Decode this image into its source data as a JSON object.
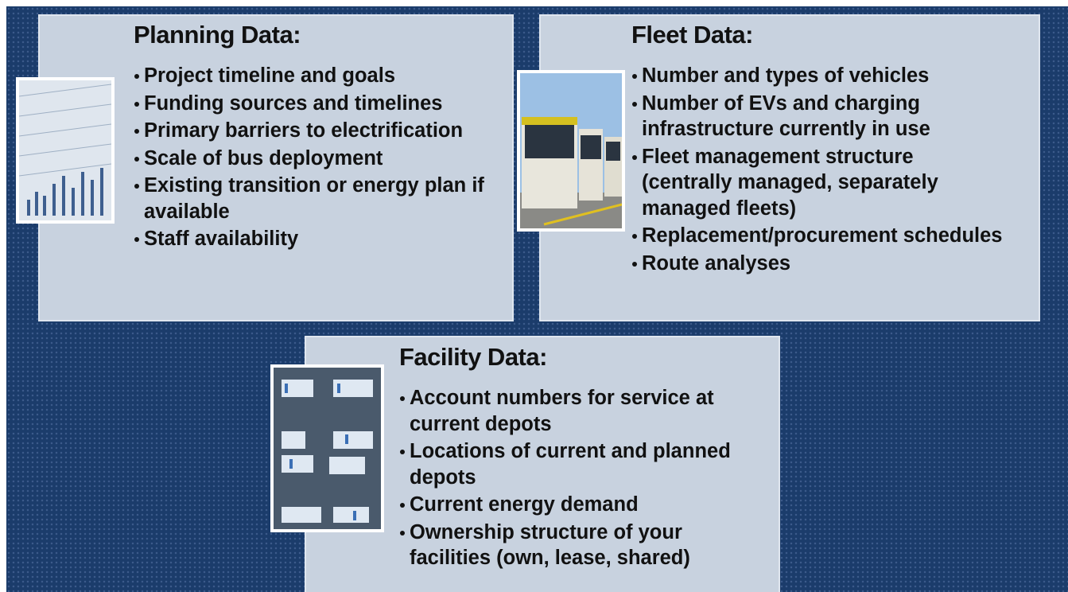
{
  "panels": [
    {
      "title": "Planning Data:",
      "items": [
        "Project timeline and goals",
        "Funding sources and timelines",
        "Primary barriers to electrification",
        "Scale of bus deployment",
        "Existing transition or energy plan if available",
        "Staff availability"
      ]
    },
    {
      "title": "Fleet Data:",
      "items": [
        "Number and types of vehicles",
        "Number of EVs and charging infrastructure currently in use",
        "Fleet management structure (centrally managed, separately managed fleets)",
        "Replacement/procurement schedules",
        "Route analyses"
      ]
    },
    {
      "title": "Facility Data:",
      "items": [
        "Account numbers for service at current depots",
        "Locations of current and planned depots",
        "Current energy demand",
        "Ownership structure of your facilities (own, lease, shared)"
      ]
    }
  ]
}
